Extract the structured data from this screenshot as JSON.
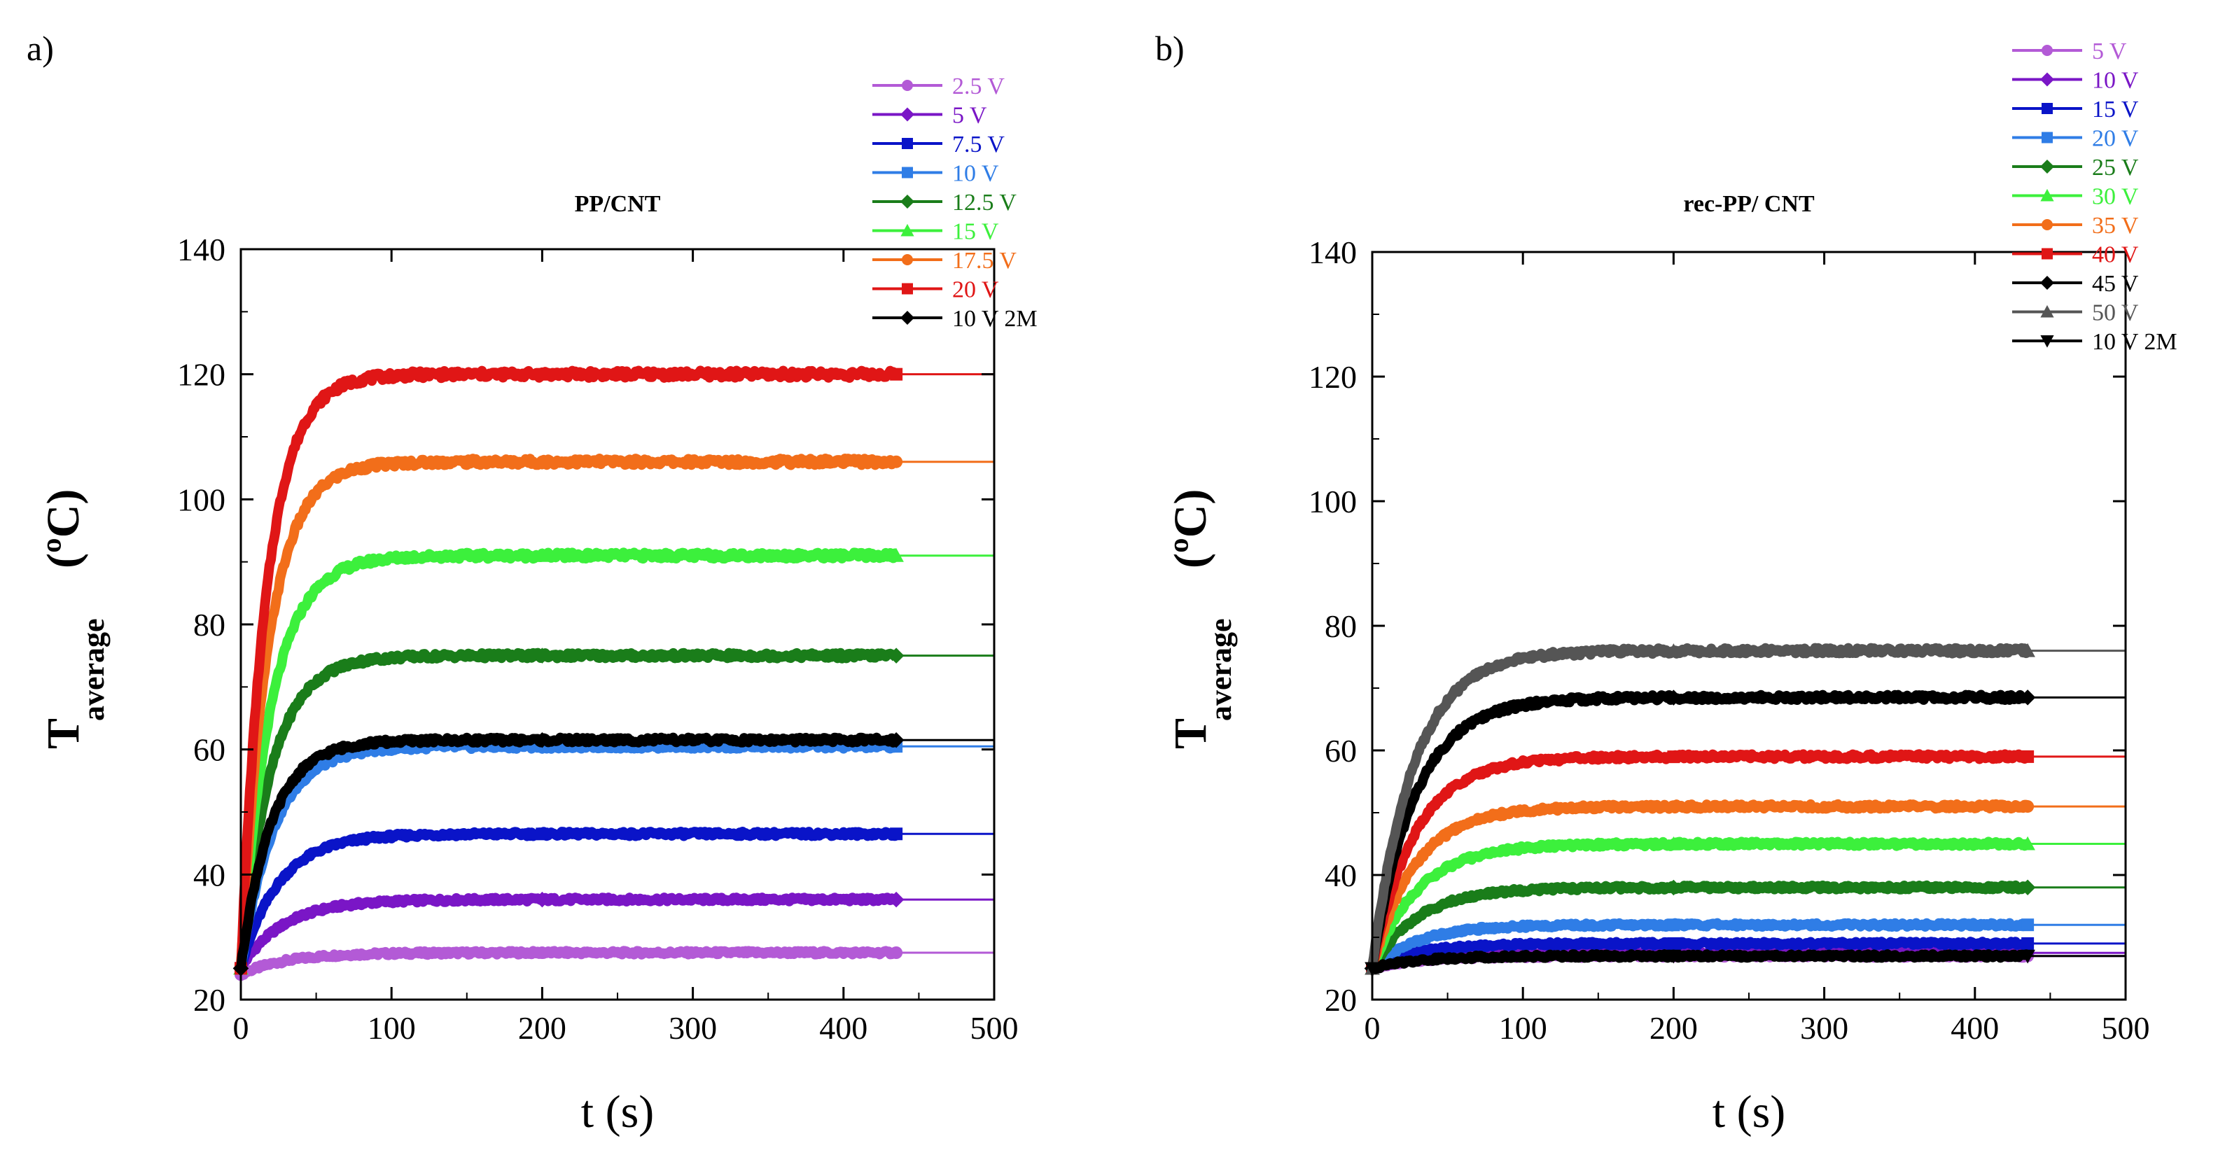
{
  "chart_data": [
    {
      "type": "line",
      "panel_label": "a)",
      "title": "PP/CNT",
      "xlabel": "t (s)",
      "ylabel": "T",
      "ylabel_sub": "average",
      "ylabel_unit": "(ºC)",
      "xlim": [
        0,
        500
      ],
      "ylim": [
        20,
        140
      ],
      "xticks": [
        0,
        100,
        200,
        300,
        400,
        500
      ],
      "yticks": [
        20,
        40,
        60,
        80,
        100,
        120,
        140
      ],
      "data_end_time": 435,
      "series": [
        {
          "name": "2.5 V",
          "color": "#b35ad6",
          "marker": "circle",
          "start": 24,
          "plateau": 27.5,
          "tau": 30
        },
        {
          "name": "5 V",
          "color": "#7a16c6",
          "marker": "diamond",
          "start": 25,
          "plateau": 36,
          "tau": 28
        },
        {
          "name": "7.5 V",
          "color": "#0a14c8",
          "marker": "square",
          "start": 25,
          "plateau": 46.5,
          "tau": 25
        },
        {
          "name": "10 V",
          "color": "#2f7de6",
          "marker": "square",
          "start": 25,
          "plateau": 60.5,
          "tau": 22
        },
        {
          "name": "12.5 V",
          "color": "#1a7d1a",
          "marker": "diamond",
          "start": 25,
          "plateau": 75,
          "tau": 20
        },
        {
          "name": "15 V",
          "color": "#3cf03c",
          "marker": "triangle",
          "start": 25,
          "plateau": 91,
          "tau": 20
        },
        {
          "name": "17.5 V",
          "color": "#f26e1a",
          "marker": "circle",
          "start": 25,
          "plateau": 106,
          "tau": 18
        },
        {
          "name": "20 V",
          "color": "#e01616",
          "marker": "square",
          "start": 25,
          "plateau": 120,
          "tau": 17
        },
        {
          "name": "10 V 2M",
          "color": "#000000",
          "marker": "diamond",
          "start": 25,
          "plateau": 61.5,
          "tau": 20
        }
      ]
    },
    {
      "type": "line",
      "panel_label": "b)",
      "title": "rec-PP/ CNT",
      "xlabel": "t (s)",
      "ylabel": "T",
      "ylabel_sub": "average",
      "ylabel_unit": "(ºC)",
      "xlim": [
        0,
        500
      ],
      "ylim": [
        20,
        140
      ],
      "xticks": [
        0,
        100,
        200,
        300,
        400,
        500
      ],
      "yticks": [
        20,
        40,
        60,
        80,
        100,
        120,
        140
      ],
      "data_end_time": 435,
      "series": [
        {
          "name": "5 V",
          "color": "#b35ad6",
          "marker": "circle",
          "start": 25,
          "plateau": 27,
          "tau": 30
        },
        {
          "name": "10 V",
          "color": "#7a16c6",
          "marker": "diamond",
          "start": 25,
          "plateau": 27.5,
          "tau": 30
        },
        {
          "name": "15 V",
          "color": "#0a14c8",
          "marker": "square",
          "start": 25,
          "plateau": 29,
          "tau": 30
        },
        {
          "name": "20 V",
          "color": "#2f7de6",
          "marker": "square",
          "start": 25,
          "plateau": 32,
          "tau": 30
        },
        {
          "name": "25 V",
          "color": "#1a7d1a",
          "marker": "diamond",
          "start": 25,
          "plateau": 38,
          "tau": 30
        },
        {
          "name": "30 V",
          "color": "#3cf03c",
          "marker": "triangle",
          "start": 25,
          "plateau": 45,
          "tau": 30
        },
        {
          "name": "35 V",
          "color": "#f26e1a",
          "marker": "circle",
          "start": 25,
          "plateau": 51,
          "tau": 28
        },
        {
          "name": "40 V",
          "color": "#e01616",
          "marker": "square",
          "start": 25,
          "plateau": 59,
          "tau": 28
        },
        {
          "name": "45 V",
          "color": "#000000",
          "marker": "diamond",
          "start": 25,
          "plateau": 68.5,
          "tau": 28
        },
        {
          "name": "50 V",
          "color": "#555555",
          "marker": "triangle",
          "start": 25,
          "plateau": 76,
          "tau": 27
        },
        {
          "name": "10 V 2M",
          "color": "#000000",
          "marker": "tri-down",
          "start": 25,
          "plateau": 27,
          "tau": 30
        }
      ]
    }
  ]
}
